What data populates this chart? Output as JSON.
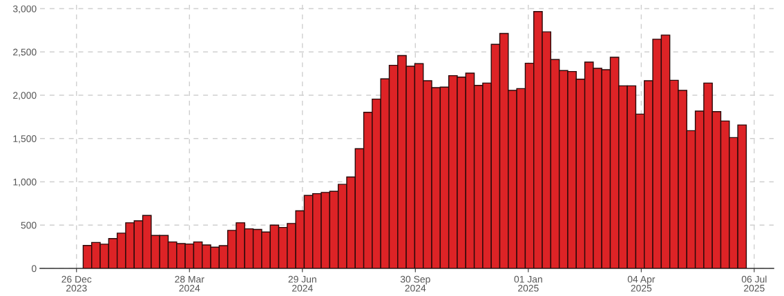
{
  "chart_data": {
    "type": "bar",
    "x": [
      "2024-01-04",
      "2024-01-11",
      "2024-01-18",
      "2024-01-25",
      "2024-02-01",
      "2024-02-08",
      "2024-02-15",
      "2024-02-22",
      "2024-02-29",
      "2024-03-07",
      "2024-03-14",
      "2024-03-21",
      "2024-03-28",
      "2024-04-04",
      "2024-04-11",
      "2024-04-18",
      "2024-04-25",
      "2024-05-02",
      "2024-05-09",
      "2024-05-16",
      "2024-05-23",
      "2024-05-30",
      "2024-06-06",
      "2024-06-13",
      "2024-06-20",
      "2024-06-27",
      "2024-07-04",
      "2024-07-11",
      "2024-07-18",
      "2024-07-25",
      "2024-08-01",
      "2024-08-08",
      "2024-08-15",
      "2024-08-22",
      "2024-08-29",
      "2024-09-05",
      "2024-09-12",
      "2024-09-19",
      "2024-09-26",
      "2024-10-03",
      "2024-10-10",
      "2024-10-17",
      "2024-10-24",
      "2024-10-31",
      "2024-11-07",
      "2024-11-14",
      "2024-11-21",
      "2024-11-28",
      "2024-12-05",
      "2024-12-12",
      "2024-12-19",
      "2024-12-26",
      "2025-01-02",
      "2025-01-09",
      "2025-01-16",
      "2025-01-23",
      "2025-01-30",
      "2025-02-06",
      "2025-02-13",
      "2025-02-20",
      "2025-02-27",
      "2025-03-06",
      "2025-03-13",
      "2025-03-20",
      "2025-03-27",
      "2025-04-03",
      "2025-04-10",
      "2025-04-17",
      "2025-04-24",
      "2025-05-01",
      "2025-05-08",
      "2025-05-15",
      "2025-05-22",
      "2025-05-29",
      "2025-06-05",
      "2025-06-12",
      "2025-06-19",
      "2025-06-26"
    ],
    "values": [
      265,
      300,
      280,
      345,
      407,
      527,
      550,
      612,
      380,
      380,
      306,
      287,
      282,
      306,
      271,
      245,
      263,
      439,
      527,
      457,
      450,
      420,
      500,
      473,
      519,
      665,
      843,
      864,
      878,
      891,
      971,
      1056,
      1383,
      1803,
      1955,
      2189,
      2346,
      2458,
      2335,
      2365,
      2168,
      2088,
      2094,
      2226,
      2210,
      2255,
      2114,
      2141,
      2588,
      2713,
      2056,
      2077,
      2370,
      2966,
      2732,
      2413,
      2285,
      2274,
      2186,
      2383,
      2311,
      2295,
      2439,
      2109,
      2109,
      1782,
      2168,
      2647,
      2695,
      2173,
      2056,
      1591,
      1817,
      2141,
      1811,
      1702,
      1511,
      1657
    ],
    "color": "#dd2326",
    "xlim": [
      "2023-11-26",
      "2025-07-22"
    ],
    "xticks": [
      {
        "value": "2023-12-26",
        "label": "26 Dec\n2023"
      },
      {
        "value": "2024-03-28",
        "label": "28 Mar\n2024"
      },
      {
        "value": "2024-06-29",
        "label": "29 Jun\n2024"
      },
      {
        "value": "2024-09-30",
        "label": "30 Sep\n2024"
      },
      {
        "value": "2025-01-01",
        "label": "01 Jan\n2025"
      },
      {
        "value": "2025-04-04",
        "label": "04 Apr\n2025"
      },
      {
        "value": "2025-07-06",
        "label": "06 Jul\n2025"
      }
    ],
    "ylim": [
      0,
      3100
    ],
    "yticks": [
      {
        "value": 0,
        "label": "0"
      },
      {
        "value": 500,
        "label": "500"
      },
      {
        "value": 1000,
        "label": "1,000"
      },
      {
        "value": 1500,
        "label": "1,500"
      },
      {
        "value": 2000,
        "label": "2,000"
      },
      {
        "value": 2500,
        "label": "2,500"
      },
      {
        "value": 3000,
        "label": "3,000"
      }
    ],
    "grid": true
  }
}
